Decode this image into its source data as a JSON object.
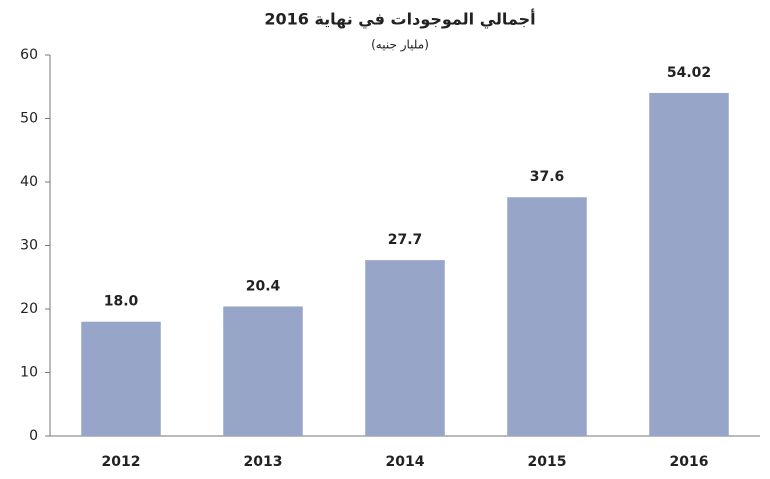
{
  "chart_data": {
    "type": "bar",
    "title": "أجمالي الموجودات في  نهاية 2016",
    "subtitle": "(مليار جنيه)",
    "categories": [
      "2012",
      "2013",
      "2014",
      "2015",
      "2016"
    ],
    "values": [
      18.0,
      20.4,
      27.7,
      37.6,
      54.02
    ],
    "value_labels": [
      "18.0",
      "20.4",
      "27.7",
      "37.6",
      "54.02"
    ],
    "color": "#97a6c8",
    "ylim": [
      0,
      60
    ],
    "yticks": [
      0,
      10,
      20,
      30,
      40,
      50,
      60
    ],
    "grid": false
  }
}
